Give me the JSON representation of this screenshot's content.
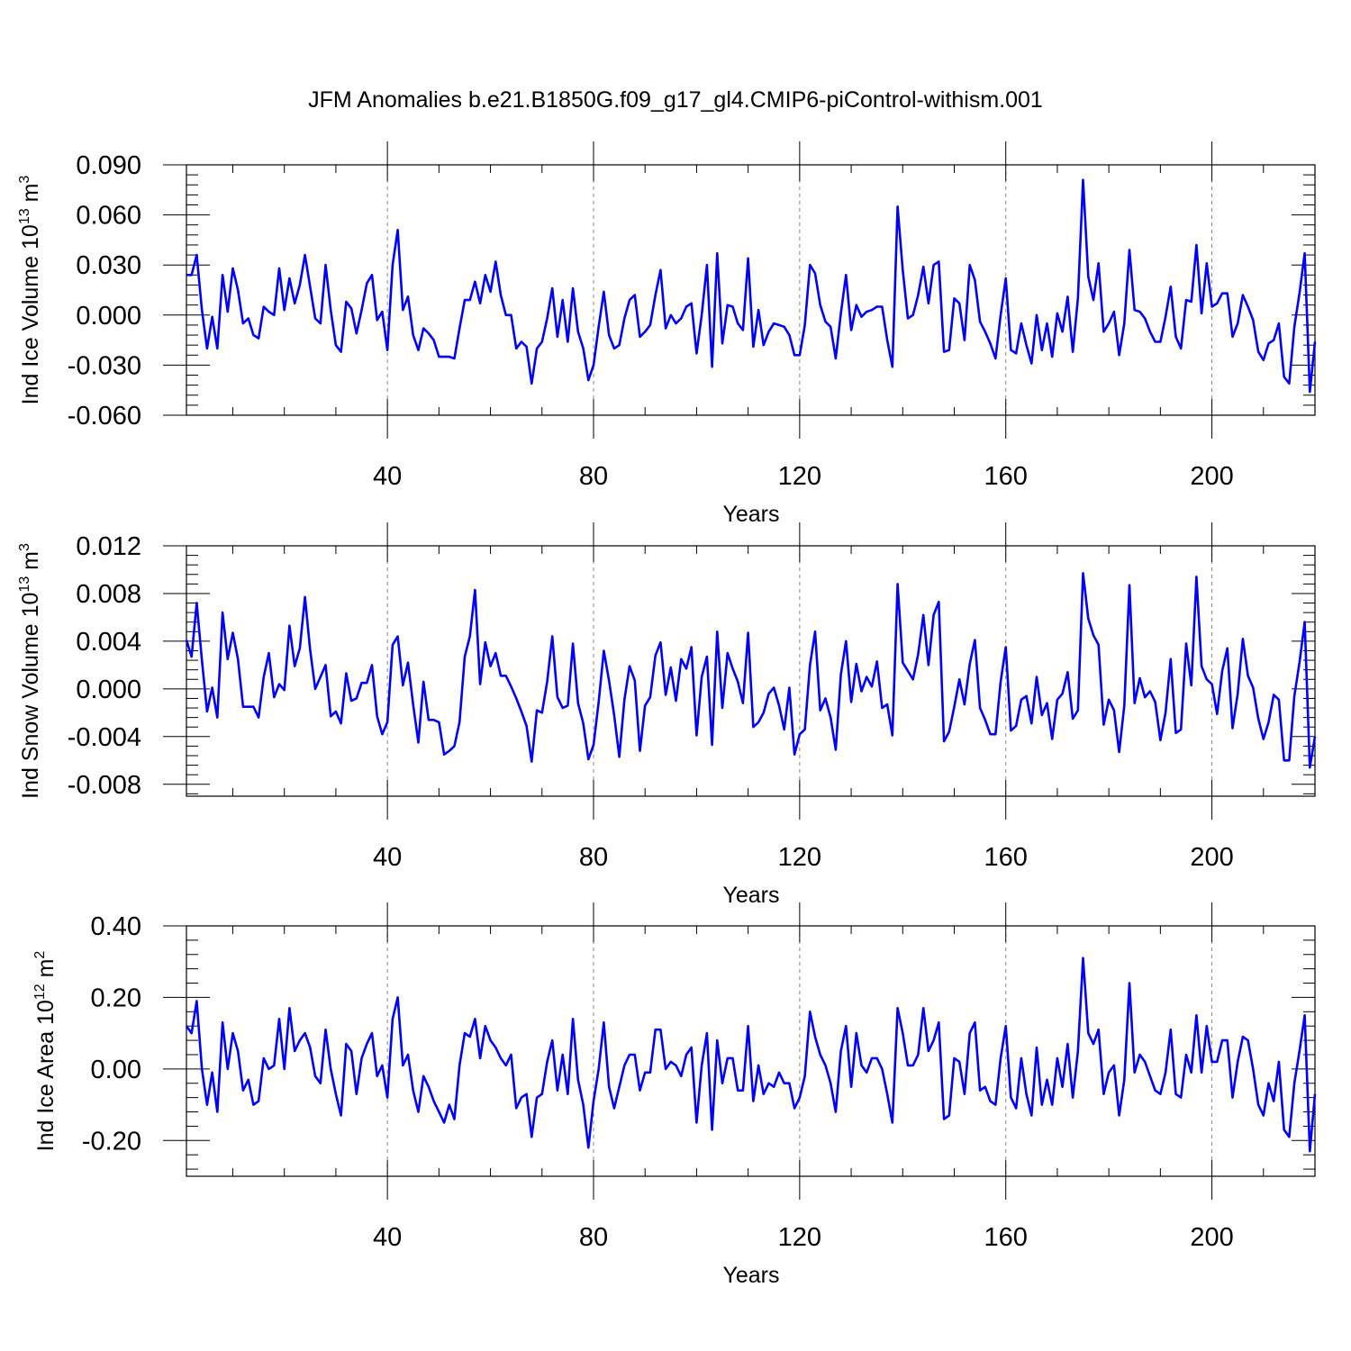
{
  "figure_title": "JFM Anomalies b.e21.B1850G.f09_g17_gl4.CMIP6-piControl-withism.001",
  "colors": {
    "series": "#0000ff",
    "grid": "#888888",
    "axis": "#000000"
  },
  "chart_data": [
    {
      "type": "line",
      "ylabel": "Ind Ice Volume 10",
      "ylabel_exp": "13",
      "ylabel_unit": " m",
      "ylabel_unit_exp": "3",
      "xlabel": "Years",
      "xlim": [
        1,
        220
      ],
      "ylim": [
        -0.06,
        0.09
      ],
      "x_ticks": [
        40,
        80,
        120,
        160,
        200
      ],
      "x_tick_labels": [
        "40",
        "80",
        "120",
        "160",
        "200"
      ],
      "y_ticks": [
        -0.06,
        -0.03,
        0.0,
        0.03,
        0.06,
        0.09
      ],
      "y_tick_labels": [
        "-0.060",
        "-0.030",
        "0.000",
        "0.030",
        "0.060",
        "0.090"
      ],
      "grid": "vertical dashed at x ticks",
      "series": [
        {
          "name": "Ind Ice Volume",
          "values": [
            0.024,
            0.024,
            0.036,
            0.003,
            -0.02,
            -0.001,
            -0.02,
            0.024,
            0.002,
            0.028,
            0.015,
            -0.005,
            -0.002,
            -0.012,
            -0.014,
            0.005,
            0.002,
            0.0,
            0.028,
            0.003,
            0.022,
            0.007,
            0.018,
            0.036,
            0.017,
            -0.002,
            -0.005,
            0.03,
            0.003,
            -0.018,
            -0.022,
            0.008,
            0.004,
            -0.011,
            0.003,
            0.019,
            0.024,
            -0.003,
            0.002,
            -0.021,
            0.03,
            0.051,
            0.003,
            0.011,
            -0.012,
            -0.021,
            -0.008,
            -0.011,
            -0.015,
            -0.025,
            -0.025,
            -0.025,
            -0.026,
            -0.008,
            0.009,
            0.009,
            0.02,
            0.007,
            0.024,
            0.014,
            0.032,
            0.012,
            0.0,
            0.0,
            -0.02,
            -0.016,
            -0.019,
            -0.041,
            -0.02,
            -0.016,
            -0.002,
            0.016,
            -0.013,
            0.009,
            -0.016,
            0.016,
            -0.01,
            -0.02,
            -0.039,
            -0.03,
            -0.007,
            0.014,
            -0.012,
            -0.02,
            -0.018,
            -0.002,
            0.009,
            0.012,
            -0.013,
            -0.01,
            -0.006,
            0.012,
            0.027,
            -0.008,
            0.0,
            -0.005,
            -0.002,
            0.005,
            0.007,
            -0.023,
            0.0,
            0.03,
            -0.031,
            0.037,
            -0.017,
            0.006,
            0.005,
            -0.005,
            -0.009,
            0.034,
            -0.019,
            0.003,
            -0.018,
            -0.01,
            -0.005,
            -0.006,
            -0.007,
            -0.012,
            -0.024,
            -0.024,
            -0.006,
            0.03,
            0.025,
            0.006,
            -0.004,
            -0.007,
            -0.026,
            0.001,
            0.024,
            -0.009,
            0.006,
            -0.001,
            0.002,
            0.003,
            0.005,
            0.005,
            -0.015,
            -0.031,
            0.065,
            0.027,
            -0.002,
            0.0,
            0.012,
            0.029,
            0.007,
            0.03,
            0.032,
            -0.022,
            -0.021,
            0.01,
            0.007,
            -0.015,
            0.03,
            0.021,
            -0.004,
            -0.01,
            -0.017,
            -0.026,
            0.0,
            0.022,
            -0.021,
            -0.023,
            -0.005,
            -0.018,
            -0.029,
            0.0,
            -0.021,
            -0.005,
            -0.025,
            0.001,
            -0.01,
            0.011,
            -0.022,
            0.01,
            0.081,
            0.023,
            0.009,
            0.031,
            -0.01,
            -0.005,
            0.002,
            -0.024,
            -0.005,
            0.039,
            0.003,
            0.002,
            -0.002,
            -0.01,
            -0.016,
            -0.016,
            -0.001,
            0.017,
            -0.013,
            -0.02,
            0.009,
            0.008,
            0.042,
            0.001,
            0.031,
            0.005,
            0.007,
            0.013,
            0.013,
            -0.013,
            -0.005,
            0.012,
            0.005,
            -0.003,
            -0.022,
            -0.027,
            -0.017,
            -0.015,
            -0.005,
            -0.037,
            -0.041,
            -0.007,
            0.013,
            0.037,
            -0.046,
            -0.016
          ]
        }
      ]
    },
    {
      "type": "line",
      "ylabel": "Ind Snow Volume 10",
      "ylabel_exp": "13",
      "ylabel_unit": " m",
      "ylabel_unit_exp": "3",
      "xlabel": "Years",
      "xlim": [
        1,
        220
      ],
      "ylim": [
        -0.009,
        0.012
      ],
      "x_ticks": [
        40,
        80,
        120,
        160,
        200
      ],
      "x_tick_labels": [
        "40",
        "80",
        "120",
        "160",
        "200"
      ],
      "y_ticks": [
        -0.008,
        -0.004,
        0.0,
        0.004,
        0.008,
        0.012
      ],
      "y_tick_labels": [
        "-0.008",
        "-0.004",
        "0.000",
        "0.004",
        "0.008",
        "0.012"
      ],
      "grid": "vertical dashed at x ticks",
      "series": [
        {
          "name": "Ind Snow Volume",
          "values": [
            0.0041,
            0.0027,
            0.0072,
            0.0024,
            -0.0019,
            0.0001,
            -0.0024,
            0.0064,
            0.0025,
            0.0047,
            0.0025,
            -0.0015,
            -0.0015,
            -0.0015,
            -0.0024,
            0.001,
            0.003,
            -0.0007,
            0.0004,
            -0.0001,
            0.0053,
            0.0019,
            0.0034,
            0.0077,
            0.0033,
            0.0,
            0.001,
            0.002,
            -0.0023,
            -0.0019,
            -0.0029,
            0.0013,
            -0.001,
            -0.0008,
            0.0005,
            0.0005,
            0.002,
            -0.0023,
            -0.0038,
            -0.0028,
            0.0037,
            0.0044,
            0.0003,
            0.0022,
            -0.0013,
            -0.0045,
            0.0006,
            -0.0026,
            -0.0026,
            -0.0028,
            -0.0055,
            -0.0052,
            -0.0048,
            -0.0028,
            0.0027,
            0.0044,
            0.0083,
            0.0004,
            0.0039,
            0.0019,
            0.003,
            0.0011,
            0.0011,
            0.0002,
            -0.0008,
            -0.0019,
            -0.0031,
            -0.0061,
            -0.0018,
            -0.002,
            0.0006,
            0.0044,
            -0.0007,
            -0.0016,
            -0.0014,
            0.0038,
            -0.0012,
            -0.0029,
            -0.0059,
            -0.0047,
            -0.0011,
            0.0032,
            0.0007,
            -0.0022,
            -0.0057,
            -0.0009,
            0.0019,
            0.0007,
            -0.0052,
            -0.0014,
            -0.0007,
            0.0028,
            0.0039,
            -0.0005,
            0.0018,
            -0.001,
            0.0025,
            0.0017,
            0.0035,
            -0.0039,
            0.001,
            0.0027,
            -0.0047,
            0.0048,
            -0.0016,
            0.003,
            0.0017,
            0.0006,
            -0.0012,
            0.0047,
            -0.0032,
            -0.0028,
            -0.002,
            -0.0004,
            0.0001,
            -0.0014,
            -0.0034,
            0.0001,
            -0.0055,
            -0.0038,
            -0.0034,
            0.002,
            0.0048,
            -0.0018,
            -0.0008,
            -0.0024,
            -0.0051,
            0.0012,
            0.004,
            -0.0011,
            0.0021,
            -0.0002,
            0.001,
            0.0002,
            0.0023,
            -0.0016,
            -0.0013,
            -0.0039,
            0.0088,
            0.0022,
            0.0015,
            0.0008,
            0.0029,
            0.0062,
            0.002,
            0.0062,
            0.0073,
            -0.0044,
            -0.0036,
            -0.0015,
            0.0008,
            -0.0013,
            0.0021,
            0.0041,
            -0.0016,
            -0.0026,
            -0.0038,
            -0.0038,
            0.0006,
            0.0035,
            -0.0035,
            -0.0031,
            -0.0009,
            -0.0006,
            -0.0029,
            0.001,
            -0.0022,
            -0.0012,
            -0.0042,
            -0.0009,
            -0.0004,
            0.0014,
            -0.0025,
            -0.0018,
            0.0097,
            0.0059,
            0.0045,
            0.0037,
            -0.003,
            -0.0009,
            -0.0018,
            -0.0053,
            -0.0014,
            0.0087,
            -0.0012,
            0.0009,
            -0.0007,
            -0.0002,
            -0.0011,
            -0.0043,
            -0.002,
            0.0025,
            -0.0037,
            -0.0034,
            0.0038,
            0.0003,
            0.0094,
            0.0019,
            0.0008,
            0.0004,
            -0.0021,
            0.0015,
            0.0034,
            -0.0033,
            -0.0004,
            0.0042,
            0.0011,
            0.0001,
            -0.0025,
            -0.0042,
            -0.0028,
            -0.0005,
            -0.0009,
            -0.006,
            -0.006,
            -0.0006,
            0.0022,
            0.0056,
            -0.0066,
            -0.004
          ]
        }
      ]
    },
    {
      "type": "line",
      "ylabel": "Ind Ice Area 10",
      "ylabel_exp": "12",
      "ylabel_unit": " m",
      "ylabel_unit_exp": "2",
      "xlabel": "Years",
      "xlim": [
        1,
        220
      ],
      "ylim": [
        -0.3,
        0.4
      ],
      "x_ticks": [
        40,
        80,
        120,
        160,
        200
      ],
      "x_tick_labels": [
        "40",
        "80",
        "120",
        "160",
        "200"
      ],
      "y_ticks": [
        -0.2,
        0.0,
        0.2,
        0.4
      ],
      "y_tick_labels": [
        "-0.20",
        "0.00",
        "0.20",
        "0.40"
      ],
      "grid": "vertical dashed at x ticks",
      "series": [
        {
          "name": "Ind Ice Area",
          "values": [
            0.12,
            0.1,
            0.19,
            0.0,
            -0.1,
            -0.01,
            -0.12,
            0.13,
            0.0,
            0.1,
            0.05,
            -0.06,
            -0.03,
            -0.1,
            -0.09,
            0.03,
            0.0,
            0.01,
            0.14,
            0.0,
            0.17,
            0.05,
            0.08,
            0.1,
            0.06,
            -0.02,
            -0.04,
            0.11,
            0.0,
            -0.07,
            -0.13,
            0.07,
            0.05,
            -0.07,
            0.03,
            0.07,
            0.1,
            -0.02,
            0.01,
            -0.08,
            0.14,
            0.2,
            0.01,
            0.04,
            -0.06,
            -0.12,
            -0.02,
            -0.05,
            -0.09,
            -0.12,
            -0.15,
            -0.1,
            -0.14,
            0.01,
            0.1,
            0.09,
            0.14,
            0.03,
            0.12,
            0.08,
            0.06,
            0.03,
            0.01,
            0.04,
            -0.11,
            -0.08,
            -0.07,
            -0.19,
            -0.08,
            -0.07,
            0.02,
            0.08,
            -0.06,
            0.04,
            -0.07,
            0.14,
            -0.03,
            -0.1,
            -0.22,
            -0.09,
            0.0,
            0.13,
            -0.05,
            -0.11,
            -0.05,
            0.01,
            0.04,
            0.04,
            -0.06,
            -0.01,
            -0.01,
            0.11,
            0.11,
            0.0,
            0.02,
            0.01,
            -0.02,
            0.04,
            0.06,
            -0.15,
            0.01,
            0.1,
            -0.17,
            0.08,
            -0.04,
            0.03,
            0.03,
            -0.06,
            -0.06,
            0.12,
            -0.09,
            0.01,
            -0.07,
            -0.04,
            -0.05,
            -0.01,
            -0.04,
            -0.04,
            -0.11,
            -0.08,
            -0.02,
            0.16,
            0.09,
            0.04,
            0.01,
            -0.04,
            -0.12,
            0.05,
            0.12,
            -0.05,
            0.1,
            0.01,
            -0.01,
            0.03,
            0.03,
            0.0,
            -0.07,
            -0.15,
            0.17,
            0.1,
            0.01,
            0.01,
            0.04,
            0.17,
            0.05,
            0.08,
            0.13,
            -0.14,
            -0.13,
            0.03,
            0.02,
            -0.07,
            0.1,
            0.13,
            -0.06,
            -0.05,
            -0.09,
            -0.1,
            0.03,
            0.12,
            -0.08,
            -0.11,
            0.03,
            -0.07,
            -0.13,
            0.06,
            -0.1,
            -0.03,
            -0.1,
            0.03,
            -0.05,
            0.07,
            -0.08,
            0.05,
            0.31,
            0.1,
            0.07,
            0.11,
            -0.07,
            -0.01,
            0.01,
            -0.13,
            -0.03,
            0.24,
            -0.01,
            0.04,
            0.02,
            -0.02,
            -0.06,
            -0.07,
            -0.01,
            0.11,
            -0.07,
            -0.08,
            0.04,
            -0.01,
            0.15,
            -0.01,
            0.12,
            0.02,
            0.02,
            0.08,
            0.08,
            -0.08,
            0.02,
            0.09,
            0.08,
            0.0,
            -0.1,
            -0.13,
            -0.04,
            -0.09,
            0.02,
            -0.17,
            -0.19,
            -0.04,
            0.05,
            0.15,
            -0.23,
            -0.07
          ]
        }
      ]
    }
  ]
}
